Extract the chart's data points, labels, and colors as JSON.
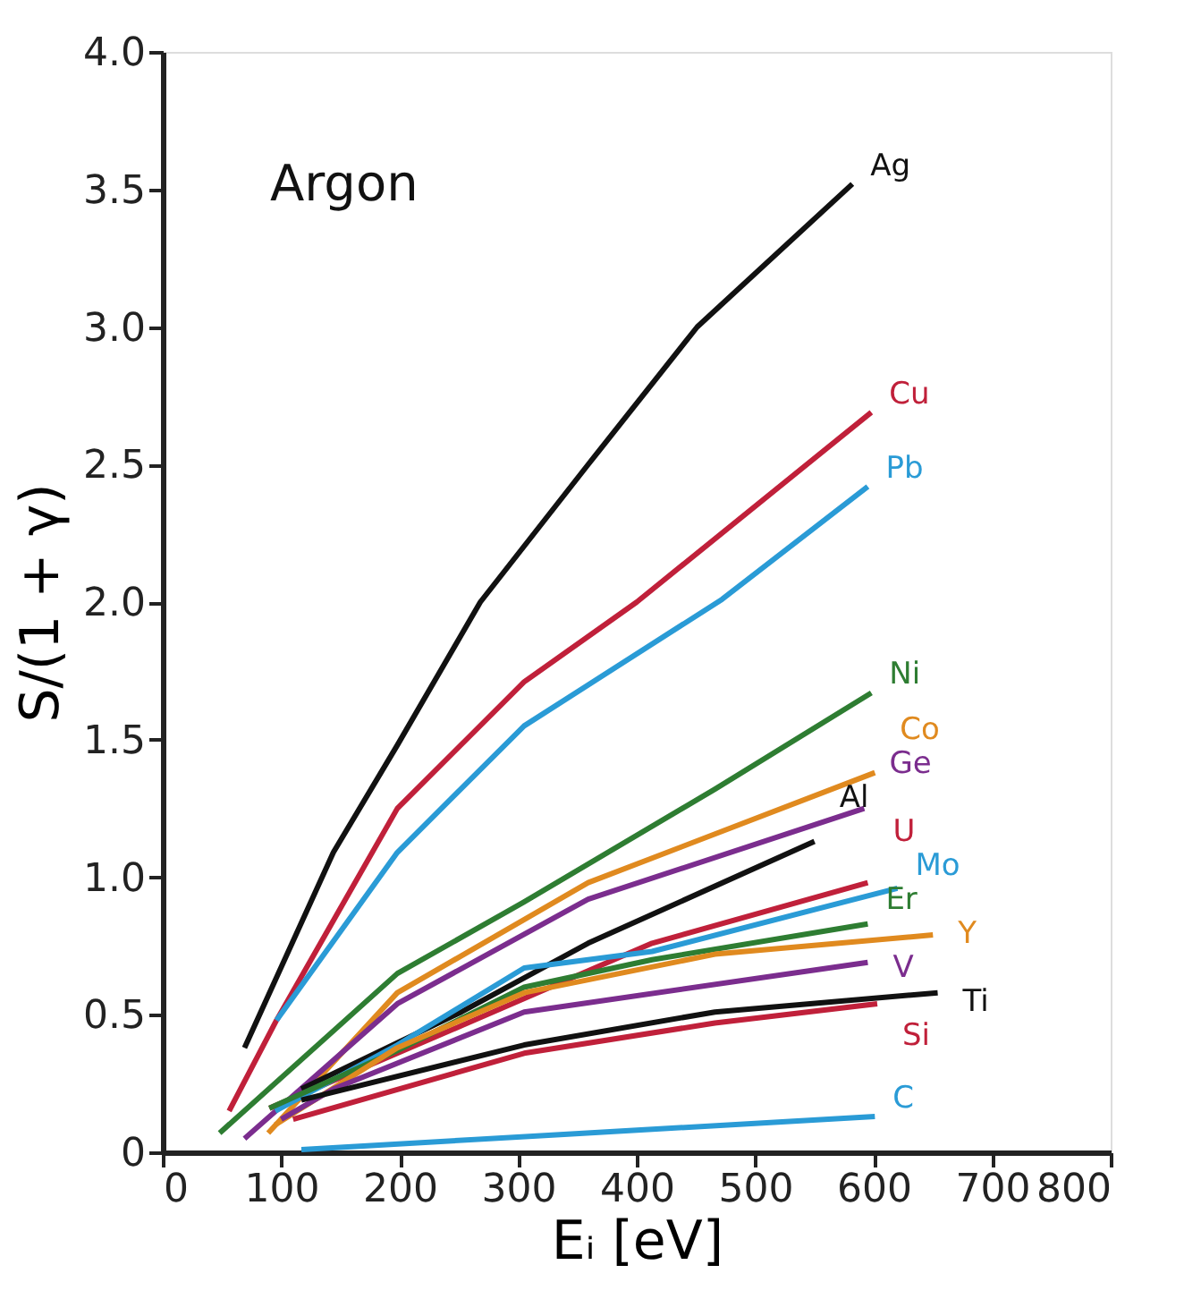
{
  "chart_data": {
    "type": "line",
    "xlabel": "Eᵢ [eV]",
    "ylabel": "S/(1 + γ)",
    "annotations": [
      "Argon"
    ],
    "xlim": [
      0,
      800
    ],
    "xticks": [
      0,
      100,
      200,
      300,
      400,
      500,
      600,
      700,
      800
    ],
    "ylim": [
      0,
      4.0
    ],
    "yticks": [
      {
        "value": 0,
        "label": "0"
      },
      {
        "value": 0.5,
        "label": "0.5"
      },
      {
        "value": 1,
        "label": "1.0"
      },
      {
        "value": 1.5,
        "label": "1.5"
      },
      {
        "value": 2,
        "label": "2.0"
      },
      {
        "value": 2.5,
        "label": "2.5"
      },
      {
        "value": 3,
        "label": "3.0"
      },
      {
        "value": 3.5,
        "label": "3.5"
      },
      {
        "value": 4,
        "label": "4.0"
      }
    ],
    "grid": false,
    "legend": false,
    "marker": "none",
    "line_style": "solid",
    "series": [
      {
        "name": "Ag",
        "color": "#111111",
        "x": [
          69,
          144,
          198,
          268,
          359,
          451,
          582
        ],
        "values": [
          0.38,
          1.09,
          1.48,
          2.0,
          2.5,
          3.0,
          3.52
        ]
      },
      {
        "name": "Cu",
        "color": "#c0203a",
        "x": [
          56,
          96,
          198,
          305,
          400,
          598
        ],
        "values": [
          0.15,
          0.48,
          1.25,
          1.71,
          2.0,
          2.69
        ]
      },
      {
        "name": "Pb",
        "color": "#2a9bd6",
        "x": [
          96,
          198,
          305,
          472,
          595
        ],
        "values": [
          0.48,
          1.09,
          1.55,
          2.01,
          2.42
        ]
      },
      {
        "name": "Ni",
        "color": "#2e7d32",
        "x": [
          48,
          198,
          305,
          466,
          598
        ],
        "values": [
          0.07,
          0.65,
          0.91,
          1.32,
          1.67
        ]
      },
      {
        "name": "Co",
        "color": "#e08a1f",
        "x": [
          89,
          198,
          359,
          601
        ],
        "values": [
          0.07,
          0.58,
          0.98,
          1.38
        ]
      },
      {
        "name": "Ge",
        "color": "#7b2d8e",
        "x": [
          69,
          198,
          359,
          592
        ],
        "values": [
          0.05,
          0.54,
          0.92,
          1.25
        ]
      },
      {
        "name": "Al",
        "color": "#111111",
        "x": [
          117,
          252,
          359,
          550
        ],
        "values": [
          0.23,
          0.51,
          0.76,
          1.13
        ]
      },
      {
        "name": "U",
        "color": "#c0203a",
        "x": [
          90,
          252,
          413,
          595
        ],
        "values": [
          0.16,
          0.46,
          0.76,
          0.98
        ]
      },
      {
        "name": "Mo",
        "color": "#2a9bd6",
        "x": [
          95,
          198,
          305,
          413,
          620
        ],
        "values": [
          0.15,
          0.39,
          0.67,
          0.73,
          0.96
        ]
      },
      {
        "name": "Er",
        "color": "#2e7d32",
        "x": [
          90,
          198,
          305,
          413,
          595
        ],
        "values": [
          0.16,
          0.37,
          0.6,
          0.7,
          0.83
        ]
      },
      {
        "name": "Y",
        "color": "#e08a1f",
        "x": [
          95,
          198,
          305,
          466,
          650
        ],
        "values": [
          0.1,
          0.38,
          0.58,
          0.72,
          0.79
        ]
      },
      {
        "name": "V",
        "color": "#7b2d8e",
        "x": [
          100,
          144,
          305,
          595
        ],
        "values": [
          0.12,
          0.23,
          0.51,
          0.69
        ]
      },
      {
        "name": "Ti",
        "color": "#111111",
        "x": [
          117,
          305,
          466,
          654
        ],
        "values": [
          0.19,
          0.39,
          0.51,
          0.58
        ]
      },
      {
        "name": "Si",
        "color": "#c0203a",
        "x": [
          110,
          305,
          466,
          603
        ],
        "values": [
          0.12,
          0.36,
          0.47,
          0.54
        ]
      },
      {
        "name": "C",
        "color": "#2a9bd6",
        "x": [
          117,
          601
        ],
        "values": [
          0.01,
          0.13
        ]
      }
    ]
  }
}
